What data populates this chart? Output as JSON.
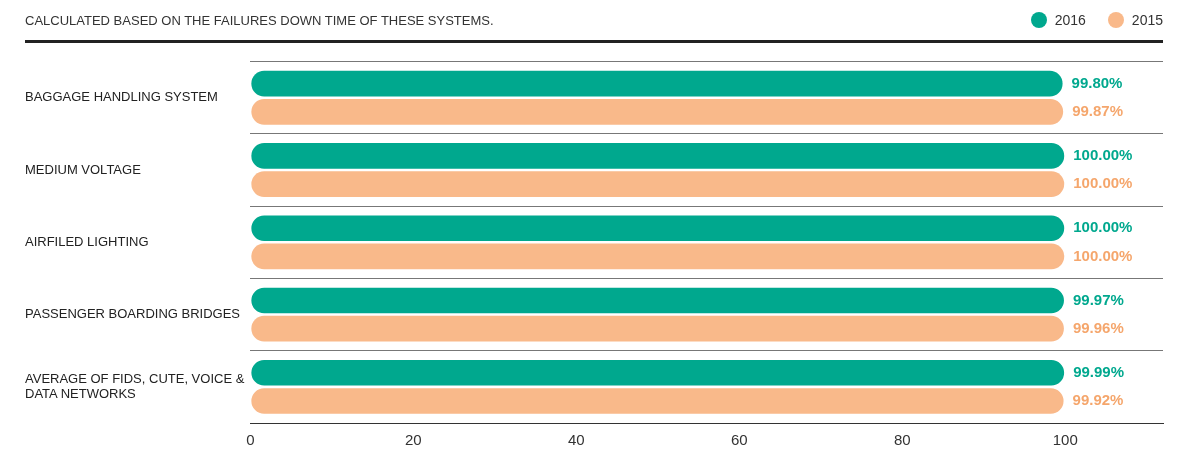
{
  "chart_data": {
    "type": "bar",
    "orientation": "horizontal",
    "title": "CALCULATED BASED ON THE FAILURES DOWN TIME OF THESE SYSTEMS.",
    "categories": [
      "BAGGAGE HANDLING SYSTEM",
      "MEDIUM VOLTAGE",
      "AIRFILED LIGHTING",
      "PASSENGER BOARDING BRIDGES",
      "AVERAGE OF FIDS, CUTE, VOICE & DATA NETWORKS"
    ],
    "series": [
      {
        "name": "2016",
        "color": "#00a88e",
        "values": [
          99.8,
          100,
          100,
          99.97,
          99.99
        ],
        "value_labels": [
          "99.80%",
          "100.00%",
          "100.00%",
          "99.97%",
          "99.99%"
        ]
      },
      {
        "name": "2015",
        "color": "#f9b98a",
        "values": [
          99.87,
          100,
          100,
          99.96,
          99.92
        ],
        "value_labels": [
          "99.87%",
          "100.00%",
          "100.00%",
          "99.96%",
          "99.92%"
        ]
      }
    ],
    "xlim": [
      0,
      112
    ],
    "xticks": [
      0,
      20,
      40,
      60,
      80,
      100
    ],
    "grid": "y",
    "legend": "top right"
  }
}
